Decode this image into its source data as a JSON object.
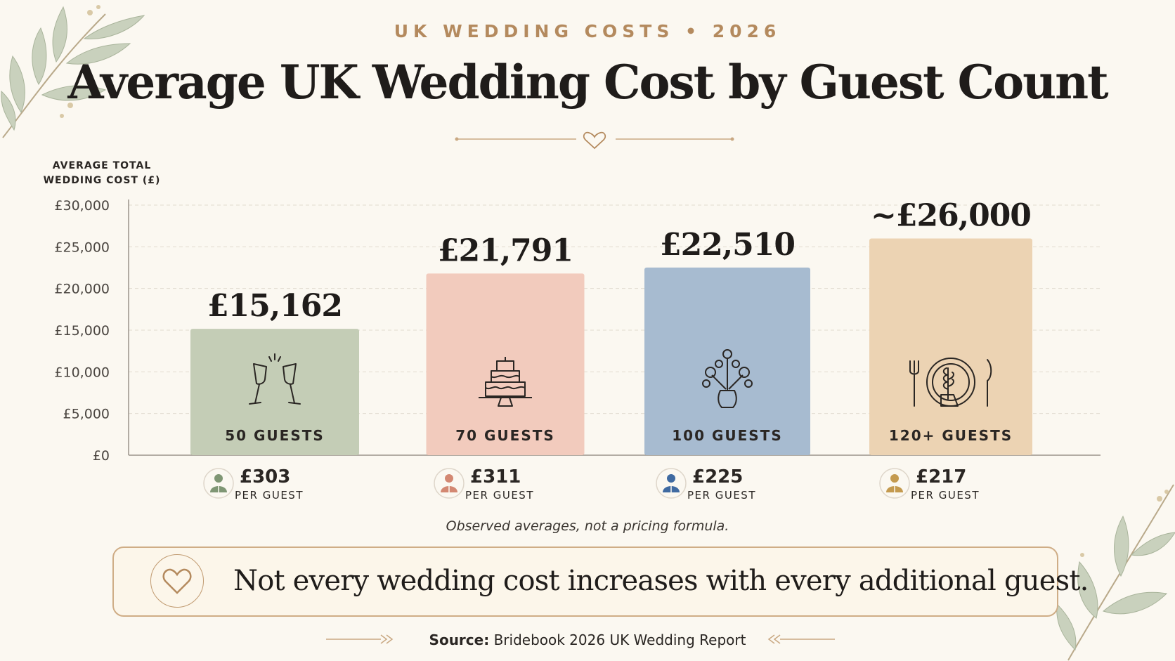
{
  "kicker": "UK WEDDING COSTS • 2026",
  "title": "Average UK Wedding Cost by Guest Count",
  "note": "Observed averages, not a pricing formula.",
  "callout": "Not every wedding cost increases with every additional guest.",
  "source": {
    "label": "Source:",
    "text": "Bridebook 2026 UK Wedding Report"
  },
  "colors": {
    "sage": "#c4cdb6",
    "blush": "#f2cbbd",
    "blue": "#a7bbd0",
    "sand": "#ecd3b3",
    "sage_icon": "#7f9674",
    "blush_icon": "#d38872",
    "blue_icon": "#3f6aa1",
    "sand_icon": "#c49a4f",
    "accent": "#b48a5e"
  },
  "chart_data": {
    "type": "bar",
    "title": "Average UK Wedding Cost by Guest Count",
    "ylabel": "AVERAGE TOTAL WEDDING COST (£)",
    "xlabel": "",
    "ylim": [
      0,
      30000
    ],
    "yticks": [
      0,
      5000,
      10000,
      15000,
      20000,
      25000,
      30000
    ],
    "ytick_labels": [
      "£0",
      "£5,000",
      "£10,000",
      "£15,000",
      "£20,000",
      "£25,000",
      "£30,000"
    ],
    "grid": true,
    "categories": [
      "50 GUESTS",
      "70 GUESTS",
      "100 GUESTS",
      "120+ GUESTS"
    ],
    "values": [
      15162,
      21791,
      22510,
      26000
    ],
    "value_labels": [
      "£15,162",
      "£21,791",
      "£22,510",
      "~£26,000"
    ],
    "bar_icons": [
      "champagne-glasses-icon",
      "wedding-cake-icon",
      "flower-vase-icon",
      "place-setting-icon"
    ],
    "bar_colors": [
      "#c4cdb6",
      "#f2cbbd",
      "#a7bbd0",
      "#ecd3b3"
    ],
    "icon_colors": [
      "#7f9674",
      "#d38872",
      "#3f6aa1",
      "#c49a4f"
    ],
    "per_guest": {
      "values": [
        303,
        311,
        225,
        217
      ],
      "labels": [
        "£303",
        "£311",
        "£225",
        "£217"
      ],
      "unit": "PER GUEST"
    }
  }
}
